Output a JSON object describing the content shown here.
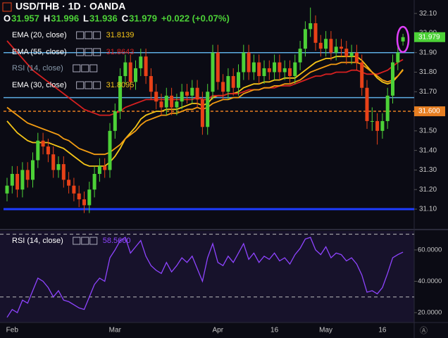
{
  "chart_data": {
    "type": "candlestick",
    "title": "USD/THB · 1D · OANDA",
    "ohlc_keys": [
      "O",
      "H",
      "L",
      "C"
    ],
    "change": "+0.022 (+0.07%)",
    "categories": [
      null,
      "Feb",
      null,
      null,
      null,
      null,
      null,
      null,
      null,
      null,
      null,
      null,
      null,
      null,
      null,
      null,
      null,
      null,
      null,
      null,
      null,
      "Mar",
      null,
      null,
      null,
      null,
      null,
      null,
      null,
      null,
      null,
      null,
      null,
      null,
      null,
      null,
      null,
      null,
      null,
      null,
      null,
      "Apr",
      null,
      null,
      null,
      null,
      null,
      null,
      null,
      null,
      null,
      null,
      "16",
      null,
      null,
      null,
      null,
      null,
      null,
      null,
      null,
      null,
      "May",
      null,
      null,
      null,
      null,
      null,
      null,
      null,
      null,
      null,
      null,
      "16",
      null,
      null,
      null,
      null
    ],
    "open": [
      31.18,
      31.22,
      31.28,
      31.2,
      31.3,
      31.25,
      31.35,
      31.45,
      31.42,
      31.38,
      31.3,
      31.33,
      31.25,
      31.22,
      31.18,
      31.15,
      31.12,
      31.2,
      31.28,
      31.32,
      31.3,
      31.5,
      31.6,
      31.78,
      31.85,
      31.75,
      31.82,
      31.88,
      31.78,
      31.7,
      31.65,
      31.62,
      31.68,
      31.62,
      31.65,
      31.7,
      31.68,
      31.72,
      31.66,
      31.52,
      31.7,
      31.9,
      31.75,
      31.7,
      31.78,
      31.72,
      31.8,
      31.9,
      31.8,
      31.85,
      31.78,
      31.82,
      31.8,
      31.85,
      31.8,
      31.82,
      31.78,
      31.85,
      31.92,
      32.02,
      32.05,
      31.95,
      31.92,
      31.97,
      31.9,
      31.93,
      31.92,
      31.88,
      31.9,
      31.85,
      31.72,
      31.55,
      31.55,
      31.5,
      31.55,
      31.68,
      31.85,
      31.957
    ],
    "high": [
      31.26,
      31.32,
      31.32,
      31.34,
      31.34,
      31.39,
      31.49,
      31.49,
      31.46,
      31.42,
      31.37,
      31.37,
      31.29,
      31.26,
      31.22,
      31.19,
      31.24,
      31.32,
      31.36,
      31.36,
      31.54,
      31.64,
      31.82,
      31.89,
      31.89,
      31.86,
      31.92,
      31.92,
      31.82,
      31.74,
      31.69,
      31.72,
      31.72,
      31.69,
      31.74,
      31.74,
      31.76,
      31.76,
      31.7,
      31.74,
      31.94,
      31.94,
      31.79,
      31.82,
      31.82,
      31.84,
      31.94,
      31.94,
      31.89,
      31.89,
      31.86,
      31.86,
      31.89,
      31.89,
      31.86,
      31.86,
      31.89,
      31.96,
      32.06,
      32.13,
      32.09,
      31.99,
      32.01,
      32.01,
      31.97,
      31.97,
      31.96,
      31.94,
      31.94,
      31.89,
      31.76,
      31.62,
      31.59,
      31.59,
      31.72,
      31.89,
      31.94,
      31.996
    ],
    "low": [
      31.14,
      31.18,
      31.16,
      31.16,
      31.21,
      31.21,
      31.31,
      31.38,
      31.34,
      31.26,
      31.26,
      31.21,
      31.18,
      31.14,
      31.11,
      31.08,
      31.08,
      31.16,
      31.24,
      31.26,
      31.26,
      31.46,
      31.56,
      31.74,
      31.71,
      31.71,
      31.78,
      31.74,
      31.66,
      31.61,
      31.58,
      31.58,
      31.58,
      31.58,
      31.61,
      31.64,
      31.64,
      31.62,
      31.48,
      31.48,
      31.66,
      31.71,
      31.66,
      31.66,
      31.68,
      31.68,
      31.76,
      31.76,
      31.76,
      31.74,
      31.74,
      31.76,
      31.76,
      31.76,
      31.76,
      31.74,
      31.74,
      31.81,
      31.88,
      31.98,
      31.91,
      31.88,
      31.88,
      31.86,
      31.86,
      31.88,
      31.84,
      31.84,
      31.81,
      31.68,
      31.51,
      31.5,
      31.43,
      31.46,
      31.51,
      31.64,
      31.81,
      31.936
    ],
    "close": [
      31.22,
      31.28,
      31.2,
      31.3,
      31.25,
      31.35,
      31.45,
      31.42,
      31.38,
      31.3,
      31.33,
      31.25,
      31.22,
      31.18,
      31.15,
      31.12,
      31.2,
      31.28,
      31.32,
      31.3,
      31.5,
      31.6,
      31.78,
      31.85,
      31.75,
      31.82,
      31.88,
      31.78,
      31.7,
      31.65,
      31.62,
      31.68,
      31.62,
      31.65,
      31.7,
      31.68,
      31.72,
      31.66,
      31.52,
      31.7,
      31.9,
      31.75,
      31.7,
      31.78,
      31.72,
      31.8,
      31.9,
      31.8,
      31.85,
      31.78,
      31.82,
      31.8,
      31.85,
      31.8,
      31.82,
      31.78,
      31.85,
      31.92,
      32.02,
      32.05,
      31.95,
      31.92,
      31.97,
      31.9,
      31.93,
      31.92,
      31.88,
      31.9,
      31.85,
      31.72,
      31.55,
      31.55,
      31.5,
      31.55,
      31.68,
      31.85,
      31.9,
      31.979
    ],
    "up_color": "#4cd137",
    "down_color": "#e84118",
    "ylim": [
      31.01,
      32.14
    ],
    "yticks": [
      {
        "value": 31.1,
        "label": "31.10"
      },
      {
        "value": 31.2,
        "label": "31.20"
      },
      {
        "value": 31.3,
        "label": "31.30"
      },
      {
        "value": 31.4,
        "label": "31.40"
      },
      {
        "value": 31.5,
        "label": "31.50"
      },
      {
        "value": 31.6,
        "label": "31.60"
      },
      {
        "value": 31.7,
        "label": "31.70"
      },
      {
        "value": 31.8,
        "label": "31.80"
      },
      {
        "value": 31.9,
        "label": "31.90"
      },
      {
        "value": 32.0,
        "label": "32.00"
      },
      {
        "value": 32.1,
        "label": "32.10"
      }
    ],
    "series": [
      {
        "name": "EMA (20, close)",
        "color": "#f5c518",
        "values": [
          31.55,
          31.52,
          31.49,
          31.47,
          31.45,
          31.44,
          31.44,
          31.44,
          31.44,
          31.43,
          31.42,
          31.41,
          31.39,
          31.37,
          31.35,
          31.33,
          31.32,
          31.32,
          31.32,
          31.32,
          31.34,
          31.37,
          31.41,
          31.46,
          31.49,
          31.52,
          31.56,
          31.58,
          31.59,
          31.6,
          31.6,
          31.61,
          31.61,
          31.61,
          31.62,
          31.63,
          31.64,
          31.64,
          31.63,
          31.64,
          31.67,
          31.68,
          31.68,
          31.69,
          31.69,
          31.7,
          31.72,
          31.73,
          31.74,
          31.74,
          31.75,
          31.75,
          31.76,
          31.76,
          31.77,
          31.77,
          31.77,
          31.79,
          31.81,
          31.83,
          31.85,
          31.86,
          31.87,
          31.87,
          31.88,
          31.88,
          31.88,
          31.88,
          31.88,
          31.86,
          31.83,
          31.8,
          31.77,
          31.75,
          31.74,
          31.75,
          31.78,
          31.8139
        ]
      },
      {
        "name": "EMA (55, close)",
        "color": "#d62020",
        "values": [
          31.96,
          31.93,
          31.9,
          31.87,
          31.84,
          31.81,
          31.79,
          31.77,
          31.75,
          31.73,
          31.71,
          31.69,
          31.67,
          31.65,
          31.63,
          31.61,
          31.6,
          31.59,
          31.58,
          31.58,
          31.58,
          31.59,
          31.6,
          31.62,
          31.63,
          31.64,
          31.65,
          31.66,
          31.66,
          31.66,
          31.66,
          31.66,
          31.66,
          31.66,
          31.66,
          31.66,
          31.66,
          31.67,
          31.66,
          31.66,
          31.68,
          31.68,
          31.68,
          31.69,
          31.69,
          31.69,
          31.7,
          31.71,
          31.71,
          31.71,
          31.72,
          31.72,
          31.72,
          31.73,
          31.73,
          31.73,
          31.74,
          31.75,
          31.76,
          31.77,
          31.78,
          31.78,
          31.79,
          31.79,
          31.8,
          31.8,
          31.8,
          31.81,
          31.81,
          31.8,
          31.79,
          31.79,
          31.79,
          31.8,
          31.81,
          31.83,
          31.85,
          31.8643
        ]
      },
      {
        "name": "EMA (30, close)",
        "color": "#f39c12",
        "values": [
          31.62,
          31.6,
          31.58,
          31.56,
          31.54,
          31.53,
          31.52,
          31.51,
          31.5,
          31.49,
          31.48,
          31.46,
          31.45,
          31.43,
          31.41,
          31.4,
          31.39,
          31.38,
          31.38,
          31.38,
          31.39,
          31.41,
          31.43,
          31.46,
          31.48,
          31.5,
          31.53,
          31.55,
          31.56,
          31.57,
          31.58,
          31.58,
          31.59,
          31.59,
          31.6,
          31.61,
          31.61,
          31.62,
          31.61,
          31.62,
          31.64,
          31.65,
          31.66,
          31.66,
          31.67,
          31.67,
          31.69,
          31.7,
          31.71,
          31.71,
          31.72,
          31.72,
          31.73,
          31.73,
          31.74,
          31.74,
          31.75,
          31.76,
          31.78,
          31.8,
          31.81,
          31.82,
          31.83,
          31.84,
          31.84,
          31.85,
          31.85,
          31.85,
          31.85,
          31.84,
          31.82,
          31.8,
          31.78,
          31.76,
          31.75,
          31.76,
          31.78,
          31.8095
        ]
      }
    ],
    "levels": [
      {
        "value": 31.9,
        "color": "#5dade2",
        "style": "solid"
      },
      {
        "value": 31.67,
        "color": "#5dade2",
        "style": "solid"
      },
      {
        "value": 31.6,
        "color": "#e67e22",
        "style": "dashed",
        "label": "31.600"
      },
      {
        "value": 31.1,
        "color": "#1e3cff",
        "style": "thick"
      }
    ],
    "rsi": {
      "name": "RSI (14, close)",
      "color": "#8e44ff",
      "value_label": "58.5660",
      "values": [
        17,
        22,
        20,
        28,
        26,
        34,
        42,
        40,
        36,
        30,
        34,
        28,
        27,
        25,
        23,
        22,
        30,
        38,
        42,
        40,
        55,
        60,
        66,
        68,
        58,
        62,
        66,
        56,
        50,
        47,
        45,
        52,
        46,
        50,
        55,
        52,
        56,
        48,
        40,
        55,
        64,
        52,
        50,
        56,
        52,
        58,
        64,
        54,
        58,
        52,
        56,
        54,
        58,
        53,
        55,
        51,
        57,
        61,
        67,
        68,
        60,
        57,
        62,
        55,
        58,
        57,
        53,
        55,
        51,
        44,
        33,
        34,
        32,
        36,
        45,
        55,
        57,
        58.566
      ],
      "ylim": [
        13.7,
        72.1
      ],
      "yticks": [
        {
          "value": 20,
          "label": "20.0000"
        },
        {
          "value": 40,
          "label": "40.0000"
        },
        {
          "value": 60,
          "label": "60.0000"
        }
      ],
      "bands": [
        70,
        30
      ]
    }
  }
}
